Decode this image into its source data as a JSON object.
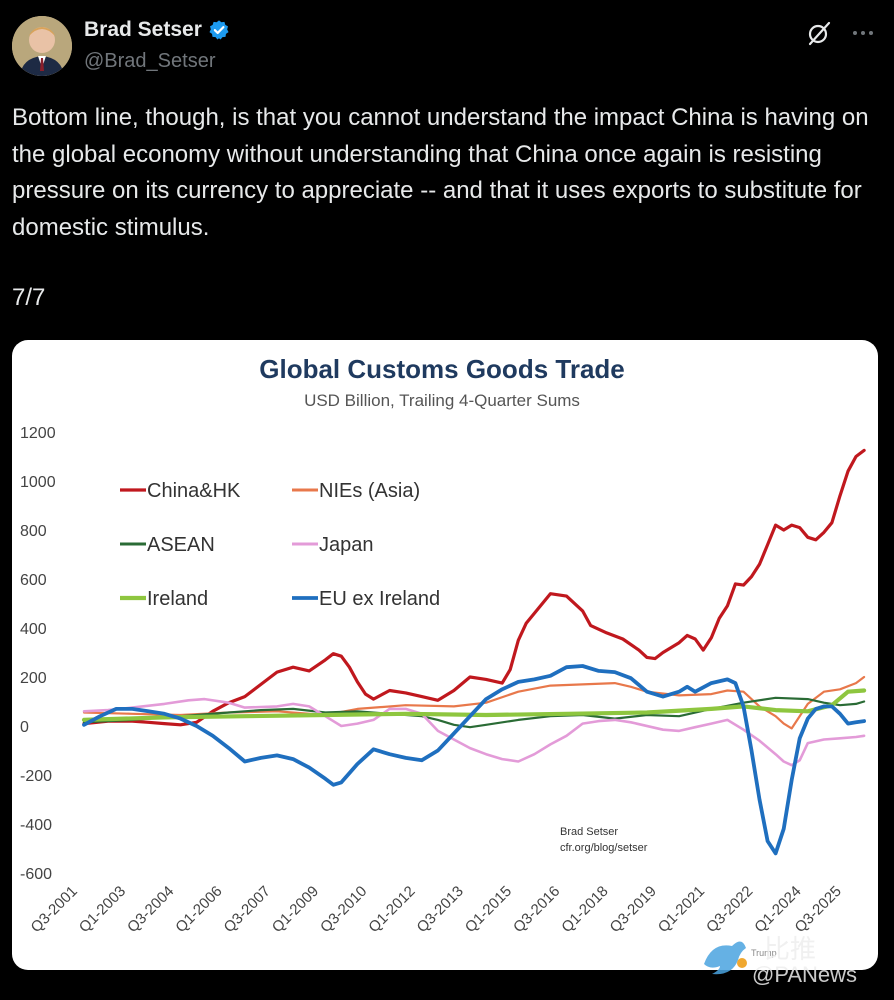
{
  "post": {
    "author_name": "Brad Setser",
    "author_handle": "@Brad_Setser",
    "text": "Bottom line, though, is that you cannot understand the impact China is having on the global economy without understanding that China once again is resisting pressure on its currency to appreciate -- and that it uses exports to substitute for domestic stimulus.",
    "thread_position": "7/7",
    "icons": [
      "verified-badge-icon",
      "grok-icon",
      "more-icon"
    ]
  },
  "watermark": {
    "cn_text": "比推",
    "en_text": "@PANews",
    "small_text": "Trump"
  },
  "chart_data": {
    "type": "line",
    "title": "Global Customs Goods Trade",
    "subtitle": "USD Billion, Trailing 4-Quarter Sums",
    "ylim": [
      -600,
      1200
    ],
    "yticks": [
      1200,
      1000,
      800,
      600,
      400,
      200,
      0,
      -200,
      -400,
      -600
    ],
    "xlim": [
      0,
      95
    ],
    "xticks": [
      {
        "i": 0,
        "label": "Q3-2001"
      },
      {
        "i": 6,
        "label": "Q1-2003"
      },
      {
        "i": 12,
        "label": "Q3-2004"
      },
      {
        "i": 18,
        "label": "Q1-2006"
      },
      {
        "i": 24,
        "label": "Q3-2007"
      },
      {
        "i": 30,
        "label": "Q1-2009"
      },
      {
        "i": 36,
        "label": "Q3-2010"
      },
      {
        "i": 42,
        "label": "Q1-2012"
      },
      {
        "i": 48,
        "label": "Q3-2013"
      },
      {
        "i": 54,
        "label": "Q1-2015"
      },
      {
        "i": 60,
        "label": "Q3-2016"
      },
      {
        "i": 66,
        "label": "Q1-2018"
      },
      {
        "i": 72,
        "label": "Q3-2019"
      },
      {
        "i": 78,
        "label": "Q1-2021"
      },
      {
        "i": 84,
        "label": "Q3-2022"
      },
      {
        "i": 90,
        "label": "Q1-2024"
      },
      {
        "i": 95,
        "label": "Q3-2025"
      }
    ],
    "credit_author": "Brad Setser",
    "credit_url": "cfr.org/blog/setser",
    "series": [
      {
        "name": "China&HK",
        "color": "#c0181e",
        "width": 3.2,
        "points": [
          [
            0,
            10
          ],
          [
            3,
            20
          ],
          [
            6,
            20
          ],
          [
            8,
            15
          ],
          [
            10,
            10
          ],
          [
            12,
            5
          ],
          [
            14,
            15
          ],
          [
            16,
            60
          ],
          [
            18,
            95
          ],
          [
            20,
            120
          ],
          [
            22,
            170
          ],
          [
            24,
            220
          ],
          [
            26,
            240
          ],
          [
            28,
            225
          ],
          [
            30,
            270
          ],
          [
            31,
            295
          ],
          [
            32,
            285
          ],
          [
            33,
            240
          ],
          [
            34,
            180
          ],
          [
            35,
            130
          ],
          [
            36,
            110
          ],
          [
            38,
            145
          ],
          [
            40,
            135
          ],
          [
            42,
            120
          ],
          [
            44,
            105
          ],
          [
            46,
            145
          ],
          [
            48,
            200
          ],
          [
            50,
            190
          ],
          [
            52,
            175
          ],
          [
            53,
            230
          ],
          [
            54,
            350
          ],
          [
            55,
            420
          ],
          [
            57,
            500
          ],
          [
            58,
            540
          ],
          [
            60,
            530
          ],
          [
            62,
            470
          ],
          [
            63,
            410
          ],
          [
            65,
            380
          ],
          [
            67,
            355
          ],
          [
            69,
            310
          ],
          [
            70,
            280
          ],
          [
            71,
            275
          ],
          [
            72,
            300
          ],
          [
            74,
            340
          ],
          [
            75,
            370
          ],
          [
            76,
            355
          ],
          [
            77,
            310
          ],
          [
            78,
            360
          ],
          [
            79,
            440
          ],
          [
            80,
            490
          ],
          [
            81,
            580
          ],
          [
            82,
            575
          ],
          [
            83,
            610
          ],
          [
            84,
            660
          ],
          [
            85,
            740
          ],
          [
            86,
            820
          ],
          [
            87,
            800
          ],
          [
            88,
            820
          ],
          [
            89,
            810
          ],
          [
            90,
            770
          ],
          [
            91,
            760
          ],
          [
            92,
            790
          ],
          [
            93,
            830
          ],
          [
            94,
            940
          ],
          [
            95,
            1040
          ],
          [
            96,
            1100
          ],
          [
            97,
            1125
          ]
        ]
      },
      {
        "name": "NIEs (Asia)",
        "color": "#e8784b",
        "width": 2.2,
        "points": [
          [
            0,
            55
          ],
          [
            6,
            50
          ],
          [
            12,
            45
          ],
          [
            18,
            55
          ],
          [
            24,
            60
          ],
          [
            30,
            45
          ],
          [
            34,
            70
          ],
          [
            40,
            85
          ],
          [
            46,
            80
          ],
          [
            50,
            95
          ],
          [
            54,
            140
          ],
          [
            58,
            165
          ],
          [
            62,
            170
          ],
          [
            66,
            175
          ],
          [
            68,
            160
          ],
          [
            70,
            140
          ],
          [
            74,
            125
          ],
          [
            78,
            130
          ],
          [
            80,
            145
          ],
          [
            82,
            140
          ],
          [
            84,
            80
          ],
          [
            86,
            40
          ],
          [
            87,
            10
          ],
          [
            88,
            -10
          ],
          [
            90,
            90
          ],
          [
            92,
            140
          ],
          [
            94,
            150
          ],
          [
            96,
            175
          ],
          [
            97,
            200
          ]
        ]
      },
      {
        "name": "ASEAN",
        "color": "#2a6b35",
        "width": 2.2,
        "points": [
          [
            0,
            15
          ],
          [
            6,
            25
          ],
          [
            12,
            40
          ],
          [
            18,
            55
          ],
          [
            22,
            65
          ],
          [
            26,
            70
          ],
          [
            30,
            55
          ],
          [
            34,
            60
          ],
          [
            38,
            50
          ],
          [
            42,
            40
          ],
          [
            44,
            25
          ],
          [
            46,
            5
          ],
          [
            48,
            -5
          ],
          [
            50,
            5
          ],
          [
            54,
            25
          ],
          [
            58,
            40
          ],
          [
            62,
            45
          ],
          [
            66,
            30
          ],
          [
            70,
            45
          ],
          [
            74,
            40
          ],
          [
            78,
            70
          ],
          [
            82,
            95
          ],
          [
            86,
            115
          ],
          [
            90,
            110
          ],
          [
            92,
            95
          ],
          [
            94,
            85
          ],
          [
            96,
            90
          ],
          [
            97,
            100
          ]
        ]
      },
      {
        "name": "Japan",
        "color": "#e39bd8",
        "width": 2.6,
        "points": [
          [
            0,
            60
          ],
          [
            3,
            65
          ],
          [
            6,
            75
          ],
          [
            10,
            90
          ],
          [
            13,
            105
          ],
          [
            15,
            110
          ],
          [
            18,
            95
          ],
          [
            20,
            75
          ],
          [
            24,
            80
          ],
          [
            26,
            90
          ],
          [
            28,
            80
          ],
          [
            30,
            40
          ],
          [
            32,
            0
          ],
          [
            34,
            10
          ],
          [
            36,
            25
          ],
          [
            38,
            70
          ],
          [
            40,
            70
          ],
          [
            42,
            50
          ],
          [
            44,
            -20
          ],
          [
            46,
            -55
          ],
          [
            48,
            -90
          ],
          [
            50,
            -115
          ],
          [
            52,
            -135
          ],
          [
            54,
            -145
          ],
          [
            56,
            -115
          ],
          [
            58,
            -75
          ],
          [
            60,
            -40
          ],
          [
            62,
            10
          ],
          [
            64,
            20
          ],
          [
            66,
            25
          ],
          [
            68,
            15
          ],
          [
            72,
            -15
          ],
          [
            74,
            -20
          ],
          [
            76,
            -5
          ],
          [
            78,
            10
          ],
          [
            80,
            25
          ],
          [
            82,
            -15
          ],
          [
            84,
            -60
          ],
          [
            86,
            -115
          ],
          [
            87,
            -145
          ],
          [
            88,
            -160
          ],
          [
            89,
            -140
          ],
          [
            90,
            -70
          ],
          [
            92,
            -55
          ],
          [
            94,
            -50
          ],
          [
            96,
            -45
          ],
          [
            97,
            -40
          ]
        ]
      },
      {
        "name": "Ireland",
        "color": "#8ec63f",
        "width": 4.2,
        "points": [
          [
            0,
            25
          ],
          [
            10,
            35
          ],
          [
            20,
            40
          ],
          [
            30,
            45
          ],
          [
            40,
            50
          ],
          [
            50,
            45
          ],
          [
            60,
            50
          ],
          [
            70,
            55
          ],
          [
            78,
            70
          ],
          [
            82,
            80
          ],
          [
            86,
            65
          ],
          [
            90,
            60
          ],
          [
            93,
            85
          ],
          [
            95,
            140
          ],
          [
            97,
            145
          ]
        ]
      },
      {
        "name": "EU ex Ireland",
        "color": "#1f6fbf",
        "width": 3.8,
        "points": [
          [
            0,
            5
          ],
          [
            2,
            40
          ],
          [
            4,
            70
          ],
          [
            6,
            70
          ],
          [
            8,
            60
          ],
          [
            10,
            50
          ],
          [
            12,
            30
          ],
          [
            14,
            0
          ],
          [
            16,
            -40
          ],
          [
            18,
            -90
          ],
          [
            20,
            -145
          ],
          [
            22,
            -130
          ],
          [
            24,
            -120
          ],
          [
            26,
            -135
          ],
          [
            28,
            -170
          ],
          [
            30,
            -215
          ],
          [
            31,
            -240
          ],
          [
            32,
            -230
          ],
          [
            34,
            -155
          ],
          [
            36,
            -95
          ],
          [
            38,
            -115
          ],
          [
            40,
            -130
          ],
          [
            42,
            -140
          ],
          [
            44,
            -100
          ],
          [
            46,
            -30
          ],
          [
            48,
            40
          ],
          [
            50,
            110
          ],
          [
            52,
            150
          ],
          [
            54,
            180
          ],
          [
            56,
            190
          ],
          [
            58,
            205
          ],
          [
            60,
            240
          ],
          [
            62,
            245
          ],
          [
            64,
            225
          ],
          [
            66,
            220
          ],
          [
            68,
            195
          ],
          [
            70,
            140
          ],
          [
            72,
            120
          ],
          [
            74,
            140
          ],
          [
            75,
            160
          ],
          [
            76,
            140
          ],
          [
            78,
            175
          ],
          [
            80,
            190
          ],
          [
            81,
            175
          ],
          [
            82,
            80
          ],
          [
            83,
            -100
          ],
          [
            84,
            -300
          ],
          [
            85,
            -470
          ],
          [
            86,
            -520
          ],
          [
            87,
            -420
          ],
          [
            88,
            -220
          ],
          [
            89,
            -50
          ],
          [
            90,
            30
          ],
          [
            91,
            70
          ],
          [
            92,
            80
          ],
          [
            93,
            80
          ],
          [
            94,
            50
          ],
          [
            95,
            10
          ],
          [
            96,
            15
          ],
          [
            97,
            20
          ]
        ]
      }
    ]
  }
}
